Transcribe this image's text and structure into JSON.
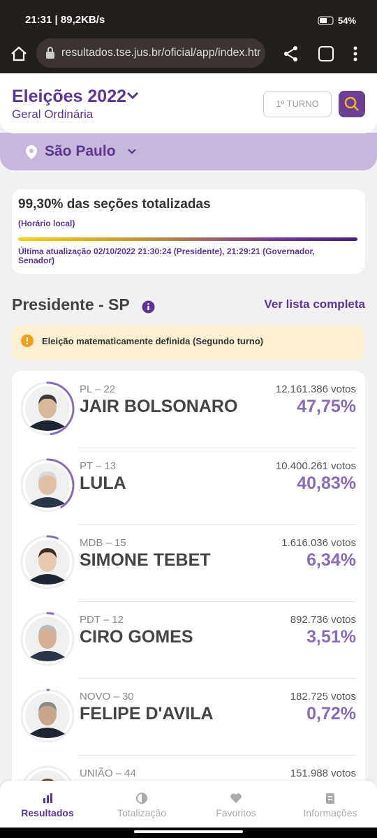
{
  "status_bar": {
    "time": "21:31 | 89,2KB/s",
    "battery": "54%"
  },
  "browser": {
    "url": "resultados.tse.jus.br/oficial/app/index.htm"
  },
  "header": {
    "title": "Eleições 2022",
    "subtitle": "Geral Ordinária",
    "round_button": "1º TURNO"
  },
  "location": "São Paulo",
  "progress": {
    "title": "99,30% das seções totalizadas",
    "note": "(Horário local)",
    "updated": "Última atualização 02/10/2022 21:30:24 (Presidente), 21:29:21 (Governador, Senador)"
  },
  "section": {
    "title": "Presidente - SP",
    "link": "Ver lista completa"
  },
  "alert": "Eleição matematicamente definida (Segundo turno)",
  "candidates": [
    {
      "party": "PL – 22",
      "name": "JAIR BOLSONARO",
      "votes": "12.161.386 votos",
      "percent": "47,75%"
    },
    {
      "party": "PT – 13",
      "name": "LULA",
      "votes": "10.400.261 votos",
      "percent": "40,83%"
    },
    {
      "party": "MDB – 15",
      "name": "SIMONE TEBET",
      "votes": "1.616.036 votos",
      "percent": "6,34%"
    },
    {
      "party": "PDT – 12",
      "name": "CIRO GOMES",
      "votes": "892.736 votos",
      "percent": "3,51%"
    },
    {
      "party": "NOVO – 30",
      "name": "FELIPE D'AVILA",
      "votes": "182.725 votos",
      "percent": "0,72%"
    },
    {
      "party": "UNIÃO – 44",
      "votes": "151.988 votos"
    }
  ],
  "nav": [
    "Resultados",
    "Totalização",
    "Favoritos",
    "Informações"
  ]
}
